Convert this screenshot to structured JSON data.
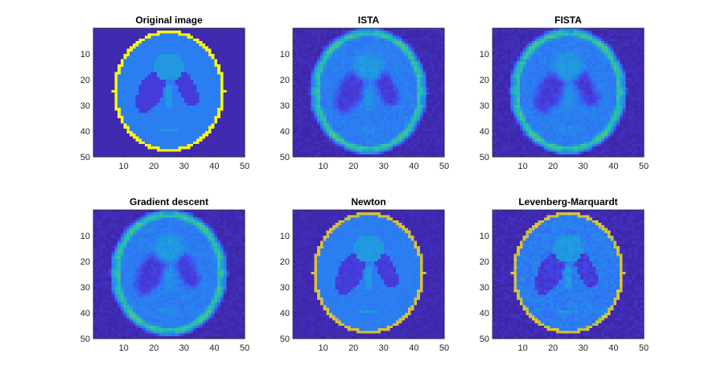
{
  "chart_data": {
    "type": "heatmap",
    "subplots": [
      {
        "title": "Original image",
        "variant": "original"
      },
      {
        "title": "ISTA",
        "variant": "ista"
      },
      {
        "title": "FISTA",
        "variant": "fista"
      },
      {
        "title": "Gradient descent",
        "variant": "gd"
      },
      {
        "title": "Newton",
        "variant": "newton"
      },
      {
        "title": "Levenberg-Marquardt",
        "variant": "lm"
      }
    ],
    "grid_size": [
      50,
      50
    ],
    "x_ticks": [
      10,
      20,
      30,
      40,
      50
    ],
    "y_ticks": [
      10,
      20,
      30,
      40,
      50
    ],
    "colormap": "parula",
    "colors": {
      "background_low": "#3e26a8",
      "outer_ring": "#f9fb0e",
      "interior": "#2f77f4",
      "dark_ellipses": "#4135bf",
      "light_region": "#2aa0e0"
    }
  }
}
